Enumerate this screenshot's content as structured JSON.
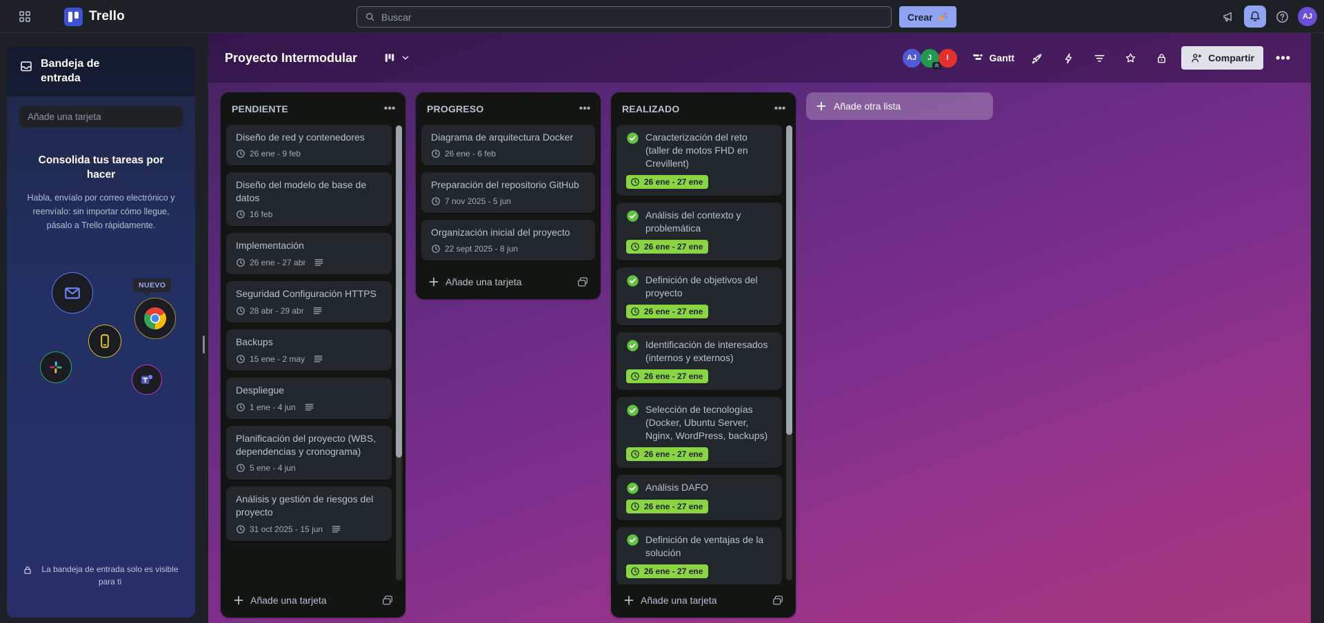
{
  "topbar": {
    "app_name": "Trello",
    "search_placeholder": "Buscar",
    "create_label": "Crear",
    "create_emoji": "🎉",
    "avatar_initials": "AJ"
  },
  "sidebar": {
    "title": "Bandeja de entrada",
    "add_card_placeholder": "Añade una tarjeta",
    "empty_title": "Consolida tus tareas por hacer",
    "empty_body": "Habla, envíalo por correo electrónico y reenvíalo: sin importar cómo llegue, pásalo a Trello rápidamente.",
    "new_badge": "NUEVO",
    "privacy_note": "La bandeja de entrada solo es visible para ti",
    "integrations": [
      {
        "name": "email",
        "ring": "#5d78f5"
      },
      {
        "name": "chrome",
        "ring": "#a98d2e"
      },
      {
        "name": "mobile",
        "ring": "#d9bd2c"
      },
      {
        "name": "slack",
        "ring": "#2ea06c"
      },
      {
        "name": "teams",
        "ring": "#c437cf"
      }
    ]
  },
  "board": {
    "title": "Proyecto Intermodular",
    "members": [
      {
        "initials": "AJ",
        "color": "#4f5ad6"
      },
      {
        "initials": "J",
        "color": "#1f9a50"
      },
      {
        "initials": "I",
        "color": "#e5312b"
      }
    ],
    "gantt_label": "Gantt",
    "share_label": "Compartir",
    "add_list_label": "Añade otra lista",
    "add_card_label": "Añade una tarjeta"
  },
  "lists": [
    {
      "name": "PENDIENTE",
      "scrollable": true,
      "cards": [
        {
          "title": "Diseño de red y contenedores",
          "date": "26 ene - 9 feb",
          "done": false,
          "desc": false
        },
        {
          "title": "Diseño del modelo de base de datos",
          "date": "16 feb",
          "done": false,
          "desc": false
        },
        {
          "title": "Implementación",
          "date": "26 ene - 27 abr",
          "done": false,
          "desc": true
        },
        {
          "title": "Seguridad Configuración HTTPS",
          "date": "28 abr - 29 abr",
          "done": false,
          "desc": true
        },
        {
          "title": "Backups",
          "date": "15 ene - 2 may",
          "done": false,
          "desc": true
        },
        {
          "title": "Despliegue",
          "date": "1 ene - 4 jun",
          "done": false,
          "desc": true
        },
        {
          "title": "Planificación del proyecto (WBS, dependencias y cronograma)",
          "date": "5 ene - 4 jun",
          "done": false,
          "desc": false
        },
        {
          "title": "Análisis y gestión de riesgos del proyecto",
          "date": "31 oct 2025 - 15 jun",
          "done": false,
          "desc": true
        }
      ]
    },
    {
      "name": "PROGRESO",
      "scrollable": false,
      "cards": [
        {
          "title": "Diagrama de arquitectura Docker",
          "date": "26 ene - 6 feb",
          "done": false,
          "desc": false
        },
        {
          "title": "Preparación del repositorio GitHub",
          "date": "7 nov 2025 - 5 jun",
          "done": false,
          "desc": false
        },
        {
          "title": "Organización inicial del proyecto",
          "date": "22 sept 2025 - 8 jun",
          "done": false,
          "desc": false
        }
      ]
    },
    {
      "name": "REALIZADO",
      "scrollable": true,
      "partial_card": true,
      "cards": [
        {
          "title": "Caracterización del reto (taller de motos FHD en Crevillent)",
          "date": "26 ene - 27 ene",
          "done": true,
          "desc": false
        },
        {
          "title": "Análisis del contexto y problemática",
          "date": "26 ene - 27 ene",
          "done": true,
          "desc": false
        },
        {
          "title": "Definición de objetivos del proyecto",
          "date": "26 ene - 27 ene",
          "done": true,
          "desc": false
        },
        {
          "title": "Identificación de interesados (internos y externos)",
          "date": "26 ene - 27 ene",
          "done": true,
          "desc": false
        },
        {
          "title": "Selección de tecnologías (Docker, Ubuntu Server, Nginx, WordPress, backups)",
          "date": "26 ene - 27 ene",
          "done": true,
          "desc": false
        },
        {
          "title": "Análisis DAFO",
          "date": "26 ene - 27 ene",
          "done": true,
          "desc": false
        },
        {
          "title": "Definición de ventajas de la solución",
          "date": "26 ene - 27 ene",
          "done": true,
          "desc": false
        }
      ]
    }
  ],
  "colors": {
    "topbar_bg": "#1d2125",
    "accent_periwinkle": "#8fa3f3",
    "sidebar_navy": "#223063",
    "board_gradient": [
      "#45215f",
      "#5d2a7d",
      "#7e2f8c",
      "#9a3488",
      "#a6387b"
    ],
    "list_bg": "#131512",
    "card_bg": "#22272b",
    "done_badge_green": "#8ad642",
    "done_check_green": "#61c140",
    "member_colors": [
      "#4f5ad6",
      "#1f9a50",
      "#e5312b"
    ]
  },
  "icons": {
    "topbar": [
      "app-switcher-grid",
      "search",
      "megaphone",
      "bell",
      "help-question",
      "avatar"
    ],
    "board_header": [
      "board-view-bars",
      "chevron-down",
      "gantt-bars",
      "rocket",
      "lightning-bolt",
      "filter-lines",
      "star",
      "lock",
      "person-plus",
      "ellipsis"
    ],
    "sidebar": [
      "inbox-tray",
      "envelope",
      "chrome",
      "mobile-phone",
      "slack",
      "teams",
      "lock"
    ],
    "cards": [
      "clock",
      "check-circle",
      "description-lines",
      "plus",
      "card-template"
    ]
  }
}
